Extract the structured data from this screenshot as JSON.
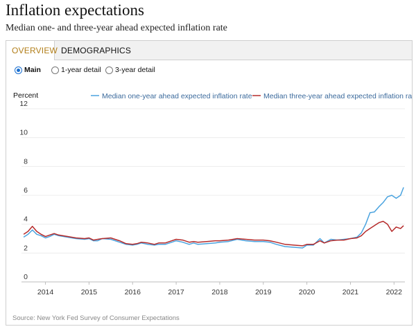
{
  "title": "Inflation expectations",
  "subtitle": "Median one- and three-year ahead expected inflation rate",
  "tabs": [
    {
      "label": "OVERVIEW",
      "active": true
    },
    {
      "label": "DEMOGRAPHICS",
      "active": false
    }
  ],
  "view_options": [
    {
      "label": "Main",
      "selected": true
    },
    {
      "label": "1-year detail",
      "selected": false
    },
    {
      "label": "3-year detail",
      "selected": false
    }
  ],
  "source": "Source: New York Fed Survey of Consumer Expectations",
  "chart_data": {
    "type": "line",
    "ylabel": "Percent",
    "ylim": [
      0,
      12
    ],
    "yticks": [
      0,
      2,
      4,
      6,
      8,
      10,
      12
    ],
    "xlim": [
      2013.45,
      2022.25
    ],
    "xticks": [
      2014,
      2015,
      2016,
      2017,
      2018,
      2019,
      2020,
      2021,
      2022
    ],
    "xtick_labels": [
      "2014",
      "2015",
      "2016",
      "2017",
      "2018",
      "2019",
      "2020",
      "2021",
      "2022"
    ],
    "grid": "horizontal",
    "legend_position": "top-right",
    "series": [
      {
        "name": "Median one-year ahead expected inflation rate",
        "color": "#4aa3df",
        "x": [
          2013.5,
          2013.6,
          2013.7,
          2013.8,
          2013.9,
          2014.0,
          2014.1,
          2014.2,
          2014.3,
          2014.5,
          2014.7,
          2014.9,
          2015.0,
          2015.1,
          2015.2,
          2015.3,
          2015.5,
          2015.7,
          2015.85,
          2016.0,
          2016.1,
          2016.2,
          2016.35,
          2016.5,
          2016.6,
          2016.75,
          2016.9,
          2017.0,
          2017.15,
          2017.3,
          2017.4,
          2017.5,
          2017.7,
          2017.9,
          2018.0,
          2018.2,
          2018.4,
          2018.6,
          2018.8,
          2019.0,
          2019.15,
          2019.3,
          2019.5,
          2019.7,
          2019.9,
          2020.0,
          2020.15,
          2020.3,
          2020.4,
          2020.55,
          2020.7,
          2020.85,
          2021.0,
          2021.15,
          2021.25,
          2021.35,
          2021.45,
          2021.55,
          2021.65,
          2021.75,
          2021.85,
          2021.95,
          2022.05,
          2022.15,
          2022.22
        ],
        "values": [
          3.1,
          3.3,
          3.6,
          3.3,
          3.2,
          3.05,
          3.15,
          3.3,
          3.2,
          3.1,
          3.0,
          2.95,
          3.0,
          2.85,
          2.85,
          3.0,
          2.95,
          2.75,
          2.6,
          2.55,
          2.6,
          2.7,
          2.6,
          2.55,
          2.6,
          2.6,
          2.75,
          2.85,
          2.75,
          2.6,
          2.7,
          2.6,
          2.65,
          2.7,
          2.75,
          2.8,
          2.95,
          2.85,
          2.8,
          2.8,
          2.75,
          2.6,
          2.45,
          2.4,
          2.35,
          2.55,
          2.55,
          3.0,
          2.7,
          2.95,
          2.9,
          2.95,
          3.0,
          3.1,
          3.4,
          4.0,
          4.8,
          4.85,
          5.2,
          5.5,
          5.9,
          6.0,
          5.8,
          6.0,
          6.55
        ]
      },
      {
        "name": "Median three-year ahead expected inflation rate",
        "color": "#b52a2a",
        "x": [
          2013.5,
          2013.6,
          2013.7,
          2013.8,
          2013.9,
          2014.0,
          2014.1,
          2014.2,
          2014.3,
          2014.5,
          2014.7,
          2014.9,
          2015.0,
          2015.1,
          2015.2,
          2015.3,
          2015.5,
          2015.7,
          2015.85,
          2016.0,
          2016.1,
          2016.2,
          2016.35,
          2016.5,
          2016.6,
          2016.75,
          2016.9,
          2017.0,
          2017.15,
          2017.3,
          2017.4,
          2017.5,
          2017.7,
          2017.9,
          2018.0,
          2018.2,
          2018.4,
          2018.6,
          2018.8,
          2019.0,
          2019.15,
          2019.3,
          2019.5,
          2019.7,
          2019.9,
          2020.0,
          2020.15,
          2020.3,
          2020.4,
          2020.55,
          2020.7,
          2020.85,
          2021.0,
          2021.15,
          2021.25,
          2021.35,
          2021.45,
          2021.55,
          2021.65,
          2021.75,
          2021.85,
          2021.95,
          2022.05,
          2022.15,
          2022.22
        ],
        "values": [
          3.3,
          3.5,
          3.85,
          3.5,
          3.3,
          3.15,
          3.25,
          3.35,
          3.25,
          3.15,
          3.05,
          3.0,
          3.05,
          2.9,
          2.95,
          3.0,
          3.05,
          2.85,
          2.65,
          2.6,
          2.65,
          2.75,
          2.7,
          2.6,
          2.7,
          2.7,
          2.85,
          2.95,
          2.9,
          2.75,
          2.8,
          2.75,
          2.8,
          2.85,
          2.85,
          2.9,
          3.0,
          2.95,
          2.9,
          2.9,
          2.85,
          2.75,
          2.6,
          2.55,
          2.5,
          2.6,
          2.6,
          2.85,
          2.7,
          2.85,
          2.9,
          2.9,
          3.0,
          3.05,
          3.2,
          3.5,
          3.7,
          3.9,
          4.1,
          4.2,
          4.0,
          3.5,
          3.8,
          3.7,
          3.9
        ]
      }
    ]
  }
}
